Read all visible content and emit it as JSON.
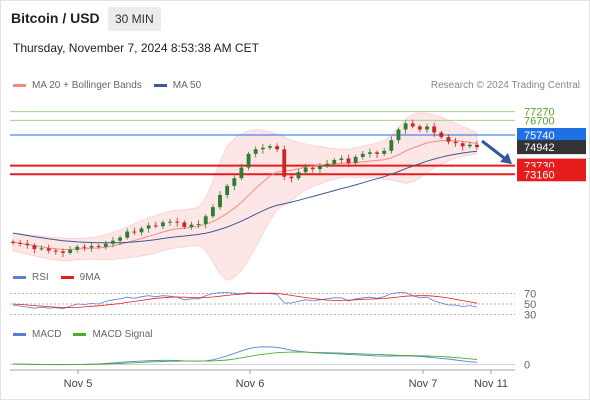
{
  "header": {
    "title": "Bitcoin / USD",
    "interval": "30 MIN",
    "datetime": "Thursday, November 7, 2024 8:53:38 AM CET"
  },
  "legend_main": [
    {
      "label": "MA 20 + Bollinger Bands",
      "color": "#f28b82"
    },
    {
      "label": "MA 50",
      "color": "#3a5a94"
    }
  ],
  "credit": "Research © 2024 Trading Central",
  "legend_rsi": [
    {
      "label": "RSI",
      "color": "#5b7fd6"
    },
    {
      "label": "9MA",
      "color": "#e02020"
    }
  ],
  "legend_macd": [
    {
      "label": "MACD",
      "color": "#5b7fd6"
    },
    {
      "label": "MACD Signal",
      "color": "#4caf2a"
    }
  ],
  "colors": {
    "bull": "#2e7d32",
    "bear": "#c62828",
    "bollinger_fill": "#fde3e3",
    "resistance_green": "#a5d08c",
    "pivot_blue": "#1f6fe5",
    "support_red": "#e51c1c",
    "last_price": "#333333",
    "arrow": "#2f5a9c"
  },
  "chart_data": [
    {
      "type": "candlestick",
      "title": "Bitcoin / USD",
      "x_ticks": [
        "Nov 5",
        "Nov 6",
        "Nov 7",
        "Nov 11"
      ],
      "ylim": [
        67400,
        78300
      ],
      "levels": [
        {
          "value": 77270,
          "label": "77270",
          "kind": "resistance"
        },
        {
          "value": 76700,
          "label": "76700",
          "kind": "resistance"
        },
        {
          "value": 75740,
          "label": "75740",
          "kind": "pivot"
        },
        {
          "value": 74942,
          "label": "74942",
          "kind": "last"
        },
        {
          "value": 73730,
          "label": "73730",
          "kind": "support"
        },
        {
          "value": 73160,
          "label": "73160",
          "kind": "support"
        }
      ],
      "close": [
        68650,
        68600,
        68500,
        68250,
        68300,
        68150,
        68100,
        68000,
        68200,
        68400,
        68350,
        68450,
        68400,
        68600,
        68800,
        69000,
        69400,
        69350,
        69600,
        69800,
        69750,
        70000,
        70050,
        70000,
        69700,
        69850,
        69900,
        70400,
        71000,
        71800,
        72400,
        72900,
        73600,
        74500,
        74800,
        74900,
        75000,
        74800,
        73000,
        72900,
        73300,
        73600,
        73500,
        73700,
        73850,
        74100,
        74200,
        73900,
        74300,
        74500,
        74600,
        74500,
        74700,
        75400,
        76100,
        76500,
        76300,
        76100,
        76300,
        75900,
        75600,
        75300,
        75200,
        75000,
        75100,
        74942
      ],
      "ma20": [
        68700,
        68640,
        68560,
        68480,
        68400,
        68320,
        68270,
        68220,
        68220,
        68250,
        68280,
        68300,
        68320,
        68380,
        68460,
        68560,
        68680,
        68810,
        68950,
        69090,
        69220,
        69370,
        69500,
        69580,
        69620,
        69680,
        69750,
        69880,
        70060,
        70300,
        70600,
        70930,
        71320,
        71780,
        72230,
        72650,
        73040,
        73320,
        73370,
        73420,
        73520,
        73640,
        73700,
        73760,
        73800,
        73840,
        73880,
        73890,
        73930,
        73980,
        74030,
        74070,
        74120,
        74240,
        74440,
        74680,
        74890,
        75050,
        75220,
        75310,
        75360,
        75380,
        75360,
        75310,
        75260,
        75180
      ],
      "bb_upper": [
        69300,
        69250,
        69200,
        69150,
        69100,
        69050,
        69000,
        68980,
        68950,
        68950,
        68980,
        69000,
        69100,
        69200,
        69350,
        69500,
        69700,
        69900,
        70100,
        70300,
        70450,
        70600,
        70750,
        70800,
        70850,
        70900,
        71000,
        71600,
        72700,
        74000,
        75000,
        75500,
        75800,
        76000,
        76100,
        76050,
        75950,
        75800,
        75600,
        75400,
        75250,
        75150,
        75050,
        75000,
        74900,
        74850,
        74800,
        74800,
        74900,
        75000,
        75100,
        75200,
        75400,
        75700,
        76200,
        76800,
        77100,
        77200,
        77150,
        77050,
        76900,
        76700,
        76500,
        76300,
        76100,
        75900
      ],
      "bb_lower": [
        68100,
        68030,
        67920,
        67810,
        67700,
        67590,
        67540,
        67460,
        67490,
        67550,
        67580,
        67600,
        67540,
        67560,
        67570,
        67620,
        67660,
        67720,
        67800,
        67880,
        67990,
        68140,
        68250,
        68360,
        68390,
        68460,
        68500,
        68160,
        67420,
        66600,
        66200,
        66360,
        66840,
        67560,
        68360,
        69250,
        70130,
        70840,
        71140,
        71440,
        71790,
        72130,
        72350,
        72520,
        72700,
        72830,
        72960,
        72980,
        72960,
        72960,
        72960,
        72940,
        72840,
        72780,
        72680,
        72560,
        72680,
        72900,
        73290,
        73570,
        73820,
        74060,
        74220,
        74320,
        74420,
        74460
      ],
      "ma50": [
        69300,
        69220,
        69140,
        69060,
        68990,
        68920,
        68860,
        68800,
        68760,
        68720,
        68700,
        68680,
        68670,
        68660,
        68660,
        68670,
        68690,
        68720,
        68760,
        68810,
        68870,
        68940,
        69010,
        69070,
        69110,
        69160,
        69210,
        69290,
        69400,
        69540,
        69700,
        69880,
        70080,
        70310,
        70540,
        70760,
        70970,
        71130,
        71230,
        71330,
        71450,
        71580,
        71700,
        71830,
        71960,
        72090,
        72220,
        72330,
        72460,
        72600,
        72740,
        72870,
        73000,
        73160,
        73340,
        73530,
        73700,
        73860,
        74020,
        74160,
        74280,
        74390,
        74480,
        74560,
        74620,
        74670
      ]
    },
    {
      "type": "line",
      "title": "",
      "series": [
        {
          "name": "RSI"
        },
        {
          "name": "9MA"
        }
      ],
      "y_ticks": [
        30,
        50,
        70
      ],
      "ylim": [
        25,
        75
      ],
      "rsi": [
        48,
        46,
        44,
        42,
        44,
        42,
        43,
        41,
        46,
        50,
        49,
        51,
        50,
        55,
        58,
        60,
        63,
        61,
        64,
        66,
        64,
        66,
        65,
        63,
        58,
        60,
        60,
        66,
        70,
        72,
        72,
        71,
        70,
        72,
        70,
        70,
        70,
        68,
        52,
        52,
        55,
        58,
        56,
        58,
        60,
        62,
        62,
        56,
        60,
        62,
        63,
        61,
        64,
        70,
        72,
        72,
        66,
        62,
        63,
        56,
        52,
        48,
        48,
        45,
        47,
        44
      ],
      "ma9": [
        50,
        49,
        48,
        47,
        46,
        45,
        44,
        43.5,
        43,
        43.5,
        44.5,
        45.5,
        46.5,
        48,
        49.5,
        51,
        53,
        55,
        57,
        59,
        61,
        62,
        63,
        63.5,
        63,
        62.5,
        62,
        62.5,
        63.5,
        65,
        66.5,
        68,
        69,
        70,
        70.5,
        70.8,
        70.8,
        70.5,
        68.5,
        66.5,
        64.5,
        62.5,
        60.5,
        59,
        57.5,
        57,
        57,
        57.5,
        58,
        59,
        59.5,
        60,
        60.5,
        62,
        63.5,
        65,
        65.5,
        66,
        66,
        65,
        63.5,
        61.5,
        59,
        56.5,
        54,
        51.5
      ]
    },
    {
      "type": "line",
      "title": "",
      "series": [
        {
          "name": "MACD"
        },
        {
          "name": "MACD Signal"
        }
      ],
      "y_ticks": [
        0
      ],
      "ylim": [
        -30,
        1200
      ],
      "macd": [
        20,
        15,
        10,
        0,
        -5,
        -10,
        -12,
        -15,
        -10,
        0,
        10,
        20,
        30,
        60,
        90,
        120,
        150,
        170,
        190,
        210,
        220,
        230,
        230,
        220,
        200,
        190,
        180,
        200,
        260,
        360,
        480,
        620,
        760,
        880,
        960,
        990,
        980,
        960,
        880,
        800,
        740,
        700,
        660,
        640,
        620,
        600,
        580,
        560,
        540,
        520,
        500,
        480,
        470,
        470,
        480,
        480,
        470,
        450,
        420,
        380,
        340,
        300,
        250,
        200,
        150,
        120
      ],
      "signal": [
        25,
        20,
        15,
        10,
        5,
        0,
        -3,
        -5,
        -5,
        -3,
        0,
        5,
        10,
        20,
        35,
        55,
        75,
        95,
        115,
        135,
        150,
        165,
        180,
        185,
        190,
        190,
        190,
        190,
        200,
        220,
        250,
        300,
        370,
        440,
        510,
        570,
        620,
        660,
        680,
        690,
        690,
        685,
        675,
        665,
        655,
        645,
        635,
        620,
        605,
        590,
        575,
        560,
        545,
        530,
        515,
        505,
        495,
        485,
        475,
        460,
        440,
        415,
        385,
        350,
        315,
        280
      ]
    }
  ]
}
